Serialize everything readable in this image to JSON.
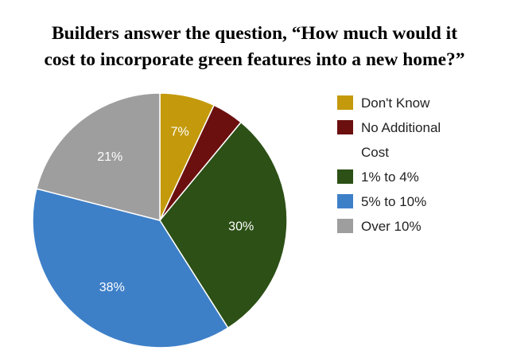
{
  "title_lines": [
    "Builders answer the question, “How much would it",
    "cost to incorporate green features into a new home?”"
  ],
  "chart_data": {
    "type": "pie",
    "title": "Builders answer the question, “How much would it cost to incorporate green features into a new home?”",
    "slices": [
      {
        "label": "Don't Know",
        "value": 7,
        "data_label": "7%",
        "color": "#c49a0c"
      },
      {
        "label": "No Additional Cost",
        "value": 4,
        "data_label": "",
        "color": "#6b0f0f"
      },
      {
        "label": "1% to 4%",
        "value": 30,
        "data_label": "30%",
        "color": "#2c5016"
      },
      {
        "label": "5% to 10%",
        "value": 38,
        "data_label": "38%",
        "color": "#3e80c8"
      },
      {
        "label": "Over 10%",
        "value": 21,
        "data_label": "21%",
        "color": "#9e9e9e"
      }
    ],
    "legend_position": "right"
  },
  "legend": {
    "items": [
      {
        "lines": [
          "Don't Know"
        ],
        "color": "#c49a0c"
      },
      {
        "lines": [
          "No Additional",
          "Cost"
        ],
        "color": "#6b0f0f"
      },
      {
        "lines": [
          "1% to 4%"
        ],
        "color": "#2c5016"
      },
      {
        "lines": [
          "5% to 10%"
        ],
        "color": "#3e80c8"
      },
      {
        "lines": [
          "Over 10%"
        ],
        "color": "#9e9e9e"
      }
    ]
  }
}
